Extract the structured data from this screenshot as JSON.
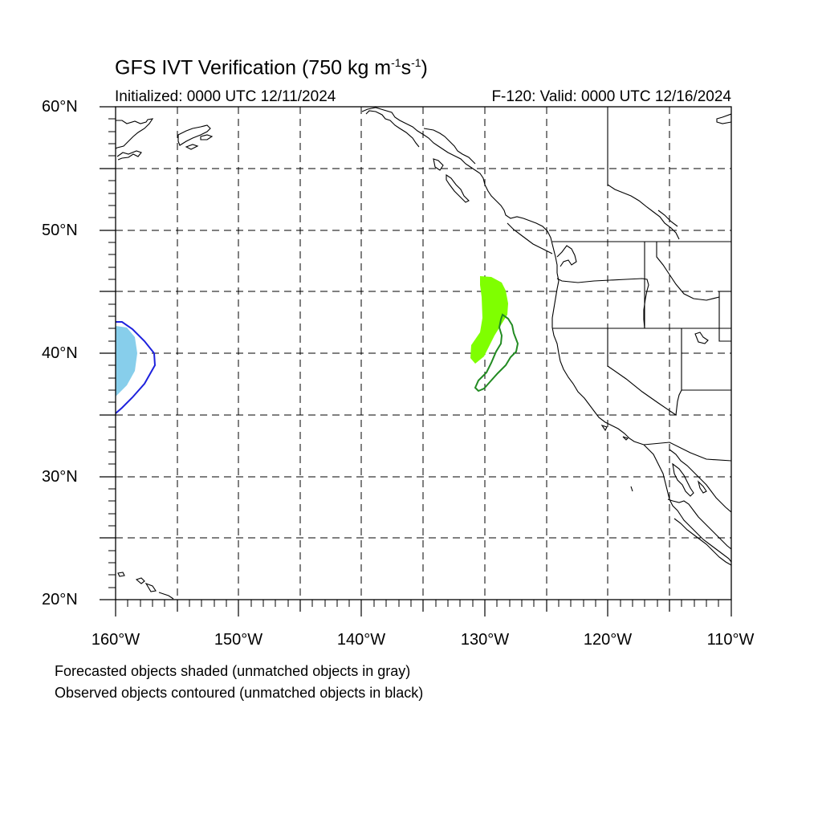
{
  "title": {
    "main": "GFS IVT Verification (750 kg m",
    "exp1": "-1",
    "mid": "s",
    "exp2": "-1",
    "end": ")"
  },
  "subtitle": {
    "initialized": "Initialized: 0000 UTC 12/11/2024",
    "valid": "F-120: Valid: 0000 UTC 12/16/2024"
  },
  "axes": {
    "lat_labels": [
      "60°N",
      "50°N",
      "40°N",
      "30°N",
      "20°N"
    ],
    "lon_labels": [
      "160°W",
      "150°W",
      "140°W",
      "130°W",
      "120°W",
      "110°W"
    ],
    "lat_range": [
      20,
      60
    ],
    "lon_range": [
      -160,
      -110
    ],
    "grid": "dashed, every 5 degrees"
  },
  "objects": {
    "forecast_matched_color": "#7fff00",
    "forecast_other_color": "#87ceeb",
    "observed_matched_color": "#228b22",
    "observed_other_color": "#1e22dd",
    "coastline_color": "#000000"
  },
  "notes": {
    "line1": "Forecasted objects shaded (unmatched objects in gray)",
    "line2": "Observed objects contoured (unmatched objects in black)"
  }
}
